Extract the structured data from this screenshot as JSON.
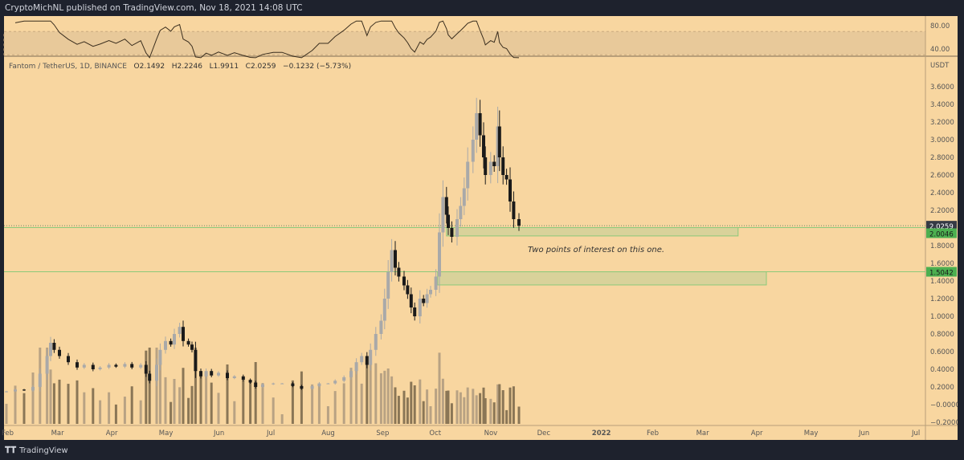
{
  "header": {
    "text": "CryptoMichNL published on TradingView.com, Nov 18, 2021 14:08 UTC"
  },
  "legend": {
    "symbol": "Fantom / TetherUS, 1D, BINANCE",
    "open": "O2.1492",
    "high": "H2.2246",
    "low": "L1.9911",
    "close": "C2.0259",
    "change": "−0.1232 (−5.73%)"
  },
  "annotation": {
    "text": "Two points of interest on this one."
  },
  "footer": {
    "brand": "TradingView"
  },
  "colors": {
    "background": "#f8d6a0",
    "bull": "#a9a9a9",
    "bear": "#1a1a1a",
    "zone_fill": "#d4d199",
    "zone_line": "#8cc97a",
    "label_green": "#4caf50",
    "label_dark": "#363a45",
    "rsi_line": "#3a2e1e",
    "rsi_band": "#e8c99a"
  },
  "chart_data": {
    "type": "candlestick",
    "currency": "USDT",
    "ylim": [
      -0.2,
      3.6
    ],
    "price_ticks": [
      "3.6000",
      "3.4000",
      "3.2000",
      "3.0000",
      "2.8000",
      "2.6000",
      "2.4000",
      "2.2000",
      "1.8000",
      "1.6000",
      "1.4000",
      "1.2000",
      "1.0000",
      "0.8000",
      "0.6000",
      "0.4000",
      "0.2000",
      "−0.0000",
      "−0.2000"
    ],
    "price_tick_values": [
      3.6,
      3.4,
      3.2,
      3.0,
      2.8,
      2.6,
      2.4,
      2.2,
      1.8,
      1.6,
      1.4,
      1.2,
      1.0,
      0.8,
      0.6,
      0.4,
      0.2,
      0,
      -0.2
    ],
    "time_ticks": [
      {
        "label": "Feb",
        "date": "2021-02-01"
      },
      {
        "label": "Mar",
        "date": "2021-03-01"
      },
      {
        "label": "Apr",
        "date": "2021-04-01"
      },
      {
        "label": "May",
        "date": "2021-05-01"
      },
      {
        "label": "Jun",
        "date": "2021-06-01"
      },
      {
        "label": "Jul",
        "date": "2021-07-01"
      },
      {
        "label": "Aug",
        "date": "2021-08-01"
      },
      {
        "label": "Sep",
        "date": "2021-09-01"
      },
      {
        "label": "Oct",
        "date": "2021-10-01"
      },
      {
        "label": "Nov",
        "date": "2021-11-01"
      },
      {
        "label": "Dec",
        "date": "2021-12-01"
      },
      {
        "label": "2022",
        "date": "2022-01-01"
      },
      {
        "label": "Feb",
        "date": "2022-02-01"
      },
      {
        "label": "Mar",
        "date": "2022-03-01"
      },
      {
        "label": "Apr",
        "date": "2022-04-01"
      },
      {
        "label": "May",
        "date": "2022-05-01"
      },
      {
        "label": "Jun",
        "date": "2022-06-01"
      },
      {
        "label": "Jul",
        "date": "2022-07-01"
      }
    ],
    "closes": [
      [
        "2021-02-01",
        0.15
      ],
      [
        "2021-02-06",
        0.17
      ],
      [
        "2021-02-11",
        0.16
      ],
      [
        "2021-02-16",
        0.2
      ],
      [
        "2021-02-20",
        0.35
      ],
      [
        "2021-02-24",
        0.55
      ],
      [
        "2021-02-26",
        0.7
      ],
      [
        "2021-02-28",
        0.62
      ],
      [
        "2021-03-03",
        0.55
      ],
      [
        "2021-03-08",
        0.48
      ],
      [
        "2021-03-13",
        0.42
      ],
      [
        "2021-03-17",
        0.45
      ],
      [
        "2021-03-22",
        0.4
      ],
      [
        "2021-03-26",
        0.42
      ],
      [
        "2021-03-31",
        0.45
      ],
      [
        "2021-04-04",
        0.43
      ],
      [
        "2021-04-09",
        0.46
      ],
      [
        "2021-04-13",
        0.42
      ],
      [
        "2021-04-18",
        0.45
      ],
      [
        "2021-04-21",
        0.35
      ],
      [
        "2021-04-23",
        0.27
      ],
      [
        "2021-04-27",
        0.45
      ],
      [
        "2021-04-29",
        0.62
      ],
      [
        "2021-05-02",
        0.72
      ],
      [
        "2021-05-05",
        0.68
      ],
      [
        "2021-05-07",
        0.8
      ],
      [
        "2021-05-10",
        0.88
      ],
      [
        "2021-05-12",
        0.72
      ],
      [
        "2021-05-15",
        0.68
      ],
      [
        "2021-05-17",
        0.62
      ],
      [
        "2021-05-19",
        0.38
      ],
      [
        "2021-05-22",
        0.32
      ],
      [
        "2021-05-25",
        0.38
      ],
      [
        "2021-05-28",
        0.33
      ],
      [
        "2021-06-01",
        0.36
      ],
      [
        "2021-06-06",
        0.3
      ],
      [
        "2021-06-10",
        0.32
      ],
      [
        "2021-06-15",
        0.28
      ],
      [
        "2021-06-19",
        0.25
      ],
      [
        "2021-06-22",
        0.2
      ],
      [
        "2021-06-26",
        0.23
      ],
      [
        "2021-07-02",
        0.24
      ],
      [
        "2021-07-07",
        0.24
      ],
      [
        "2021-07-13",
        0.21
      ],
      [
        "2021-07-18",
        0.18
      ],
      [
        "2021-07-24",
        0.21
      ],
      [
        "2021-07-28",
        0.24
      ],
      [
        "2021-08-02",
        0.24
      ],
      [
        "2021-08-06",
        0.27
      ],
      [
        "2021-08-11",
        0.31
      ],
      [
        "2021-08-15",
        0.38
      ],
      [
        "2021-08-18",
        0.48
      ],
      [
        "2021-08-21",
        0.55
      ],
      [
        "2021-08-24",
        0.45
      ],
      [
        "2021-08-26",
        0.62
      ],
      [
        "2021-08-29",
        0.8
      ],
      [
        "2021-09-01",
        0.95
      ],
      [
        "2021-09-03",
        1.2
      ],
      [
        "2021-09-05",
        1.5
      ],
      [
        "2021-09-07",
        1.75
      ],
      [
        "2021-09-09",
        1.55
      ],
      [
        "2021-09-11",
        1.45
      ],
      [
        "2021-09-14",
        1.35
      ],
      [
        "2021-09-16",
        1.25
      ],
      [
        "2021-09-18",
        1.1
      ],
      [
        "2021-09-20",
        1.0
      ],
      [
        "2021-09-23",
        1.2
      ],
      [
        "2021-09-25",
        1.15
      ],
      [
        "2021-09-27",
        1.25
      ],
      [
        "2021-09-29",
        1.3
      ],
      [
        "2021-10-02",
        1.45
      ],
      [
        "2021-10-04",
        1.95
      ],
      [
        "2021-10-06",
        2.35
      ],
      [
        "2021-10-08",
        2.15
      ],
      [
        "2021-10-09",
        2.0
      ],
      [
        "2021-10-11",
        1.9
      ],
      [
        "2021-10-14",
        2.1
      ],
      [
        "2021-10-16",
        2.25
      ],
      [
        "2021-10-18",
        2.45
      ],
      [
        "2021-10-20",
        2.75
      ],
      [
        "2021-10-23",
        3.0
      ],
      [
        "2021-10-25",
        3.3
      ],
      [
        "2021-10-27",
        3.05
      ],
      [
        "2021-10-29",
        2.8
      ],
      [
        "2021-10-30",
        2.6
      ],
      [
        "2021-11-02",
        2.75
      ],
      [
        "2021-11-04",
        2.7
      ],
      [
        "2021-11-06",
        3.15
      ],
      [
        "2021-11-07",
        2.8
      ],
      [
        "2021-11-09",
        2.6
      ],
      [
        "2021-11-11",
        2.55
      ],
      [
        "2021-11-13",
        2.3
      ],
      [
        "2021-11-15",
        2.1
      ],
      [
        "2021-11-18",
        2.0259
      ]
    ],
    "last_price": {
      "label": "2.0259",
      "value": 2.0259
    },
    "levels": [
      {
        "label": "2.0046",
        "value": 2.0046
      },
      {
        "label": "1.5042",
        "value": 1.5042
      }
    ],
    "zones": [
      {
        "top": 2.0046,
        "bottom": 1.91,
        "start": "2021-10-08",
        "end": "2022-03-22"
      },
      {
        "top": 1.5042,
        "bottom": 1.355,
        "start": "2021-10-03",
        "end": "2022-04-07"
      }
    ],
    "rsi": {
      "ticks": [
        "80.00",
        "40.00"
      ],
      "tick_values": [
        80,
        40
      ],
      "band": [
        30,
        70
      ]
    }
  }
}
